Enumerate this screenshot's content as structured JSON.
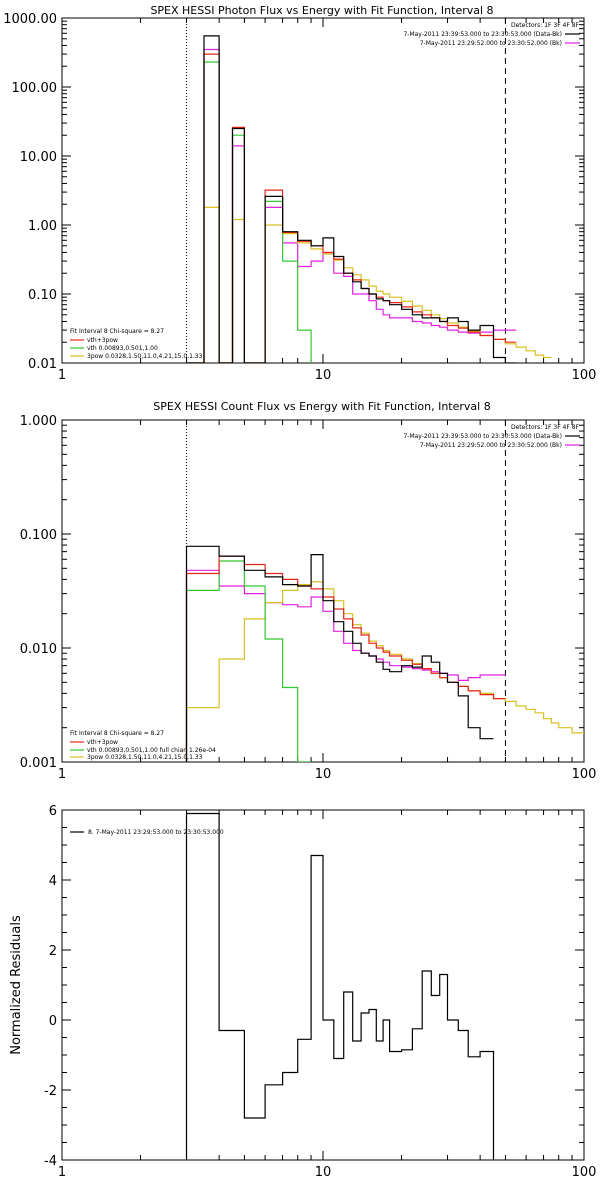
{
  "colors": {
    "data": "#000000",
    "total": "#e8261c",
    "thermal": "#32c832",
    "powerlaw": "#d8c020",
    "background": "#e020e0"
  },
  "chart_data": [
    {
      "type": "line",
      "title": "SPEX HESSI Photon Flux vs Energy with Fit Function, Interval 8",
      "xlabel": "",
      "ylabel": "",
      "xscale": "log",
      "yscale": "log",
      "xlim": [
        1,
        100
      ],
      "ylim": [
        0.01,
        1000
      ],
      "xticks": [
        {
          "v": 1,
          "label": "1"
        },
        {
          "v": 10,
          "label": "10"
        },
        {
          "v": 100,
          "label": "100"
        }
      ],
      "yticks": [
        {
          "v": 1000,
          "label": "1000.00"
        },
        {
          "v": 100,
          "label": "100.00"
        },
        {
          "v": 10,
          "label": "10.00"
        },
        {
          "v": 1,
          "label": "1.00"
        },
        {
          "v": 0.1,
          "label": "0.10"
        },
        {
          "v": 0.01,
          "label": "0.01"
        }
      ],
      "vlines": [
        {
          "x": 3,
          "style": "dotted"
        },
        {
          "x": 50,
          "style": "dashed"
        }
      ],
      "legend_top_right": {
        "line1": "Detectors: 1F 3F 4F 8F",
        "line2": "7-May-2011 23:39:53.000 to 23:30:53.000 (Data-Bk)",
        "line3": "7-May-2011 23:29:52.000 to 23:30:52.000 (Bk)"
      },
      "legend_bottom_left": {
        "line1": "Fit Interval 8   Chi-square = 8.27",
        "line2": "vth+3pow",
        "line3": "vth 0.00893,0.501,1.00",
        "line4": "3pow 0.0328,1.50,11.0,4.21,15.0,1.33"
      },
      "edges": [
        3.0,
        3.5,
        4.0,
        4.5,
        5.0,
        6.0,
        7.0,
        8.0,
        9.0,
        10.0,
        11.0,
        12.0,
        13.0,
        14.0,
        15.0,
        16.0,
        17.0,
        18.0,
        20.0,
        22.0,
        24.0,
        26.0,
        28.0,
        30.0,
        33.0,
        36.0,
        40.0,
        45.0,
        50.0,
        55.0,
        60.0,
        65.0,
        70.0,
        75.0
      ],
      "series": [
        {
          "key": "data",
          "values": [
            0,
            550,
            0,
            25,
            0,
            2.6,
            0.8,
            0.6,
            0.5,
            0.65,
            0.35,
            0.2,
            0.15,
            0.12,
            0.1,
            0.085,
            0.08,
            0.07,
            0.06,
            0.05,
            0.045,
            0.045,
            0.04,
            0.045,
            0.04,
            0.03,
            0.035,
            0.012,
            0.01
          ]
        },
        {
          "key": "total",
          "values": [
            0,
            300,
            0,
            26,
            0,
            3.2,
            0.78,
            0.58,
            0.5,
            0.4,
            0.32,
            0.2,
            0.16,
            0.12,
            0.1,
            0.09,
            0.08,
            0.075,
            0.065,
            0.055,
            0.05,
            0.045,
            0.04,
            0.035,
            0.032,
            0.028,
            0.025,
            0.022,
            0.02
          ]
        },
        {
          "key": "thermal",
          "values": [
            0,
            230,
            0,
            20,
            0,
            2.2,
            0.3,
            0.03
          ]
        },
        {
          "key": "powerlaw",
          "values": [
            0,
            1.8,
            0,
            1.2,
            0,
            1.0,
            0.75,
            0.55,
            0.45,
            0.38,
            0.31,
            0.24,
            0.19,
            0.16,
            0.13,
            0.11,
            0.1,
            0.09,
            0.078,
            0.067,
            0.058,
            0.05,
            0.044,
            0.038,
            0.033,
            0.029,
            0.025,
            0.022,
            0.019,
            0.017,
            0.015,
            0.013,
            0.012
          ]
        },
        {
          "key": "background",
          "values": [
            0,
            350,
            0,
            14,
            0,
            1.8,
            0.55,
            0.25,
            0.3,
            0.4,
            0.2,
            0.18,
            0.1,
            0.1,
            0.08,
            0.06,
            0.05,
            0.045,
            0.045,
            0.04,
            0.038,
            0.035,
            0.033,
            0.03,
            0.028,
            0.027,
            0.028,
            0.03,
            0.03
          ]
        }
      ]
    },
    {
      "type": "line",
      "title": "SPEX HESSI Count Flux vs Energy with Fit Function, Interval 8",
      "xlabel": "",
      "ylabel": "",
      "xscale": "log",
      "yscale": "log",
      "xlim": [
        1,
        100
      ],
      "ylim": [
        0.001,
        1
      ],
      "xticks": [
        {
          "v": 1,
          "label": "1"
        },
        {
          "v": 10,
          "label": "10"
        },
        {
          "v": 100,
          "label": "100"
        }
      ],
      "yticks": [
        {
          "v": 1,
          "label": "1.000"
        },
        {
          "v": 0.1,
          "label": "0.100"
        },
        {
          "v": 0.01,
          "label": "0.010"
        },
        {
          "v": 0.001,
          "label": "0.001"
        }
      ],
      "vlines": [
        {
          "x": 3,
          "style": "dotted"
        },
        {
          "x": 50,
          "style": "dashed"
        }
      ],
      "legend_top_right": {
        "line1": "Detectors: 1F 3F 4F 8F",
        "line2": "7-May-2011 23:39:53.000 to 23:30:53.000 (Data-Bk)",
        "line3": "7-May-2011 23:29:52.000 to 23:30:52.000 (Bk)"
      },
      "legend_bottom_left": {
        "line1": "Fit Interval 8   Chi-square = 8.27",
        "line2": "vth+3pow",
        "line3": "vth 0.00893,0.501,1.00   full chian 1.26e-04",
        "line4": "3pow 0.0328,1.50,11.0,4.21,15.0,1.33"
      },
      "edges": [
        3.0,
        4.0,
        5.0,
        6.0,
        7.0,
        8.0,
        9.0,
        10.0,
        11.0,
        12.0,
        13.0,
        14.0,
        15.0,
        16.0,
        17.0,
        18.0,
        20.0,
        22.0,
        24.0,
        26.0,
        28.0,
        30.0,
        33.0,
        36.0,
        40.0,
        45.0,
        50.0,
        55.0,
        60.0,
        65.0,
        70.0,
        75.0,
        80.0,
        90.0,
        100.0
      ],
      "series": [
        {
          "key": "data",
          "values": [
            0.078,
            0.064,
            0.048,
            0.042,
            0.036,
            0.035,
            0.066,
            0.026,
            0.017,
            0.014,
            0.011,
            0.009,
            0.0085,
            0.0075,
            0.0065,
            0.0062,
            0.007,
            0.0068,
            0.0085,
            0.0075,
            0.006,
            0.005,
            0.0038,
            0.002,
            0.0016
          ]
        },
        {
          "key": "total",
          "values": [
            0.045,
            0.064,
            0.054,
            0.045,
            0.04,
            0.035,
            0.033,
            0.028,
            0.022,
            0.018,
            0.015,
            0.013,
            0.011,
            0.01,
            0.0092,
            0.0085,
            0.0078,
            0.0072,
            0.0066,
            0.006,
            0.0055,
            0.005,
            0.0046,
            0.0042,
            0.0039,
            0.0036
          ]
        },
        {
          "key": "thermal",
          "values": [
            0.032,
            0.058,
            0.035,
            0.012,
            0.0045,
            0.0005
          ]
        },
        {
          "key": "powerlaw",
          "values": [
            0.003,
            0.008,
            0.018,
            0.025,
            0.032,
            0.036,
            0.038,
            0.033,
            0.026,
            0.02,
            0.016,
            0.0135,
            0.0115,
            0.0105,
            0.0095,
            0.0088,
            0.008,
            0.0073,
            0.0066,
            0.006,
            0.0055,
            0.005,
            0.0046,
            0.0042,
            0.004,
            0.0036,
            0.0034,
            0.0031,
            0.0029,
            0.0027,
            0.0024,
            0.0022,
            0.002,
            0.0018
          ]
        },
        {
          "key": "background",
          "values": [
            0.048,
            0.035,
            0.03,
            0.025,
            0.024,
            0.023,
            0.028,
            0.021,
            0.014,
            0.011,
            0.0095,
            0.009,
            0.0085,
            0.008,
            0.0075,
            0.007,
            0.0068,
            0.0066,
            0.0064,
            0.0062,
            0.006,
            0.0058,
            0.0052,
            0.0055,
            0.0058,
            0.0058
          ]
        }
      ]
    },
    {
      "type": "line",
      "title": "",
      "xlabel": "",
      "ylabel": "Normalized Residuals",
      "xscale": "log",
      "yscale": "linear",
      "xlim": [
        1,
        100
      ],
      "ylim": [
        -4,
        6
      ],
      "xticks": [
        {
          "v": 1,
          "label": "1"
        },
        {
          "v": 10,
          "label": "10"
        },
        {
          "v": 100,
          "label": "100"
        }
      ],
      "yticks": [
        {
          "v": 6,
          "label": "6"
        },
        {
          "v": 4,
          "label": "4"
        },
        {
          "v": 2,
          "label": "2"
        },
        {
          "v": 0,
          "label": "0"
        },
        {
          "v": -2,
          "label": "-2"
        },
        {
          "v": -4,
          "label": "-4"
        }
      ],
      "vlines": [],
      "legend_top_left": "8. 7-May-2011 23:29:53.000 to 23:30:53.000",
      "edges": [
        3.0,
        4.0,
        5.0,
        6.0,
        7.0,
        8.0,
        9.0,
        10.0,
        11.0,
        12.0,
        13.0,
        14.0,
        15.0,
        16.0,
        17.0,
        18.0,
        20.0,
        22.0,
        24.0,
        26.0,
        28.0,
        30.0,
        33.0,
        36.0,
        40.0,
        45.0,
        50.0
      ],
      "series": [
        {
          "key": "data",
          "values": [
            5.9,
            -0.3,
            -2.8,
            -1.85,
            -1.5,
            -0.55,
            4.7,
            0.0,
            -1.1,
            0.8,
            -0.6,
            0.2,
            0.3,
            -0.6,
            0.0,
            -0.9,
            -0.85,
            -0.25,
            1.4,
            0.7,
            1.3,
            0.0,
            -0.3,
            -1.05,
            -0.9
          ]
        }
      ]
    }
  ]
}
